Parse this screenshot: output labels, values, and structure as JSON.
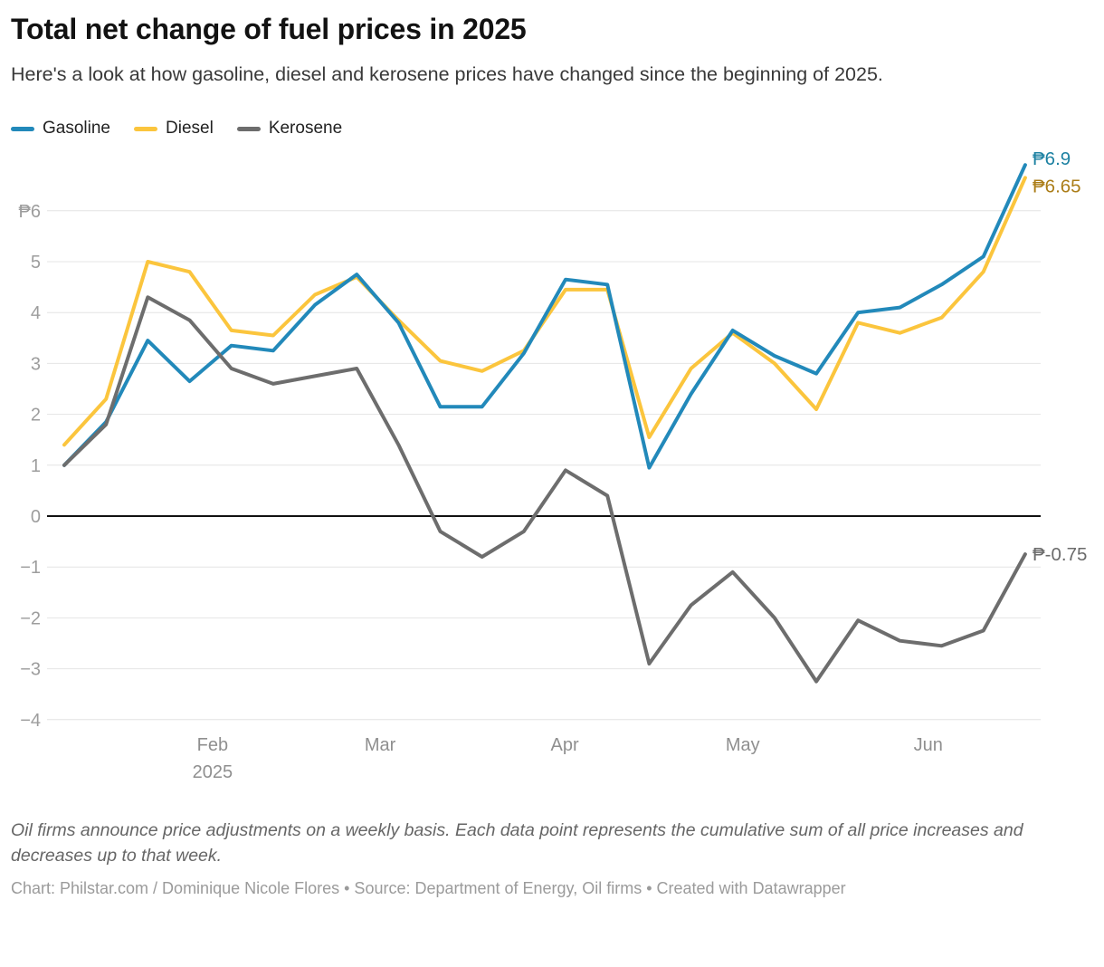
{
  "header": {
    "title": "Total net change of fuel prices in 2025",
    "subtitle": "Here's a look at how gasoline, diesel and kerosene prices have changed since the beginning of 2025."
  },
  "legend": [
    {
      "label": "Gasoline",
      "color": "#2289ba"
    },
    {
      "label": "Diesel",
      "color": "#fbc53d"
    },
    {
      "label": "Kerosene",
      "color": "#6d6d6d"
    }
  ],
  "chart_data": {
    "type": "line",
    "title": "Total net change of fuel prices in 2025",
    "x_unit": "weekly price adjustments, Jan–Jun 2025",
    "grid": true,
    "legend_position": "top-left",
    "ylim": [
      -4,
      7.3
    ],
    "baseline": 0,
    "series": [
      {
        "name": "Gasoline",
        "color": "#2289ba",
        "label_color": "#1d81a2",
        "end_label": "₱6.9",
        "values": [
          1.0,
          1.85,
          3.45,
          2.65,
          3.35,
          3.25,
          4.15,
          4.75,
          3.8,
          2.15,
          2.15,
          3.2,
          4.65,
          4.55,
          0.95,
          2.4,
          3.65,
          3.15,
          2.8,
          4.0,
          4.1,
          4.55,
          5.1,
          6.9
        ]
      },
      {
        "name": "Diesel",
        "color": "#fbc53d",
        "label_color": "#ab7d18",
        "end_label": "₱6.65",
        "values": [
          1.4,
          2.3,
          5.0,
          4.8,
          3.65,
          3.55,
          4.35,
          4.7,
          3.85,
          3.05,
          2.85,
          3.25,
          4.45,
          4.45,
          1.55,
          2.9,
          3.6,
          3.0,
          2.1,
          3.8,
          3.6,
          3.9,
          4.8,
          6.65
        ]
      },
      {
        "name": "Kerosene",
        "color": "#6d6d6d",
        "label_color": "#6b6b6b",
        "end_label": "₱-0.75",
        "values": [
          1.0,
          1.8,
          4.3,
          3.85,
          2.9,
          2.6,
          2.75,
          2.9,
          1.4,
          -0.3,
          -0.8,
          -0.3,
          0.9,
          0.4,
          -2.9,
          -1.75,
          -1.1,
          -2.0,
          -3.25,
          -2.05,
          -2.45,
          -2.55,
          -2.25,
          -0.75
        ]
      }
    ],
    "y_ticks": [
      {
        "v": 6,
        "label": "₱6"
      },
      {
        "v": 5,
        "label": "5"
      },
      {
        "v": 4,
        "label": "4"
      },
      {
        "v": 3,
        "label": "3"
      },
      {
        "v": 2,
        "label": "2"
      },
      {
        "v": 1,
        "label": "1"
      },
      {
        "v": 0,
        "label": "0"
      },
      {
        "v": -1,
        "label": "−1"
      },
      {
        "v": -2,
        "label": "−2"
      },
      {
        "v": -3,
        "label": "−3"
      },
      {
        "v": -4,
        "label": "−4"
      }
    ],
    "x_ticks": [
      {
        "label": "Feb",
        "sublabel": "2025",
        "i": 3.55
      },
      {
        "label": "Mar",
        "i": 7.56
      },
      {
        "label": "Apr",
        "i": 11.98
      },
      {
        "label": "May",
        "i": 16.24
      },
      {
        "label": "Jun",
        "i": 20.68
      }
    ]
  },
  "footer": {
    "note": "Oil firms announce price adjustments on a weekly basis. Each data point represents the cumulative sum of all price increases and decreases up to that week.",
    "attribution": "Chart: Philstar.com / Dominique Nicole Flores • Source: Department of Energy, Oil firms • Created with Datawrapper"
  }
}
